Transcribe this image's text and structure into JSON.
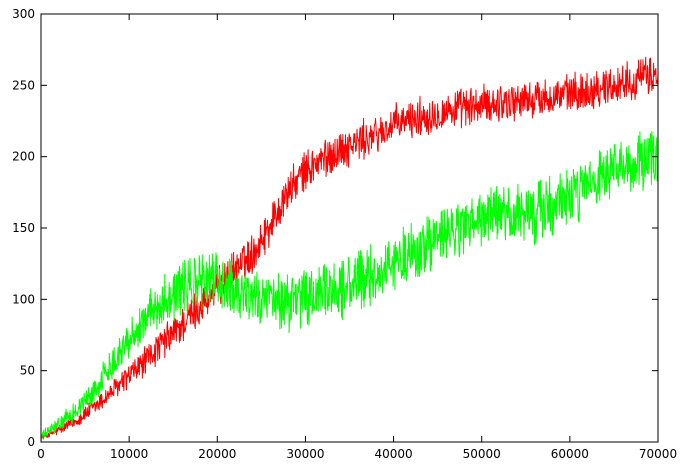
{
  "chart_data": {
    "type": "line",
    "title": "",
    "xlabel": "",
    "ylabel": "",
    "xlim": [
      0,
      70000
    ],
    "ylim": [
      0,
      300
    ],
    "x_ticks": [
      0,
      10000,
      20000,
      30000,
      40000,
      50000,
      60000,
      70000
    ],
    "y_ticks": [
      0,
      50,
      100,
      150,
      200,
      250,
      300
    ],
    "grid": false,
    "legend": "none",
    "series": [
      {
        "color": "#ff0000",
        "noise": 12,
        "x": [
          0,
          2000,
          4000,
          6000,
          8000,
          10000,
          12000,
          14000,
          16000,
          18000,
          20000,
          22000,
          24000,
          26000,
          28000,
          30000,
          32000,
          34000,
          36000,
          38000,
          40000,
          42000,
          44000,
          46000,
          48000,
          50000,
          52000,
          54000,
          56000,
          58000,
          60000,
          62000,
          64000,
          66000,
          68000,
          70000
        ],
        "y": [
          3,
          8,
          15,
          24,
          35,
          46,
          58,
          70,
          82,
          95,
          108,
          120,
          132,
          152,
          175,
          190,
          198,
          205,
          210,
          215,
          222,
          226,
          229,
          232,
          234,
          236,
          238,
          239,
          240,
          242,
          244,
          246,
          249,
          252,
          255,
          258
        ]
      },
      {
        "color": "#00ff00",
        "noise": 18,
        "x": [
          0,
          2000,
          4000,
          6000,
          8000,
          10000,
          12000,
          14000,
          16000,
          18000,
          20000,
          22000,
          24000,
          26000,
          28000,
          30000,
          32000,
          34000,
          36000,
          38000,
          40000,
          42000,
          44000,
          46000,
          48000,
          50000,
          52000,
          54000,
          56000,
          58000,
          60000,
          62000,
          64000,
          66000,
          68000,
          70000
        ],
        "y": [
          4,
          12,
          22,
          35,
          55,
          72,
          88,
          100,
          108,
          112,
          114,
          108,
          102,
          98,
          98,
          100,
          104,
          108,
          112,
          118,
          125,
          132,
          138,
          145,
          150,
          156,
          160,
          158,
          160,
          166,
          172,
          178,
          185,
          190,
          196,
          200
        ]
      }
    ]
  }
}
